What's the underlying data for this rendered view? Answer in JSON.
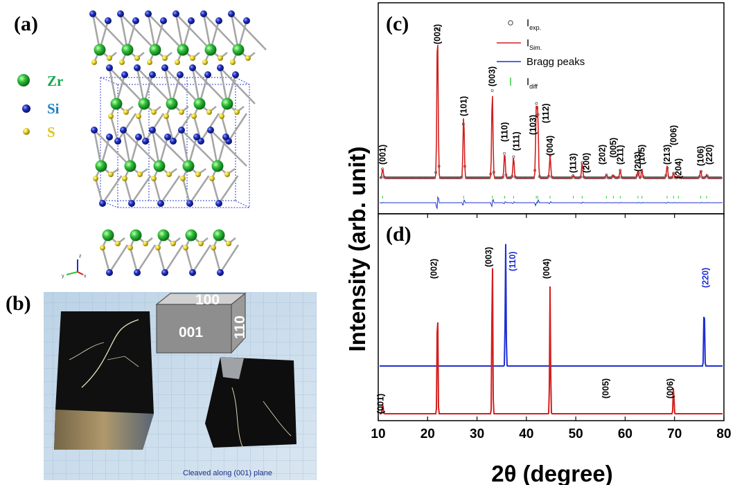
{
  "panels": {
    "a": "(a)",
    "b": "(b)",
    "c": "(c)",
    "d": "(d)"
  },
  "atom_legend": [
    {
      "label": "Zr",
      "color": "#2fbf3a",
      "text_color": "#1aa84f"
    },
    {
      "label": "Si",
      "color": "#1f2fbf",
      "text_color": "#1f7fbf"
    },
    {
      "label": "S",
      "color": "#e8d62a",
      "text_color": "#e0c21c"
    }
  ],
  "crystal_axes": {
    "z": "z",
    "y": "y",
    "x": "x"
  },
  "photo": {
    "cube_faces": {
      "top": "100",
      "front": "001",
      "side": "110"
    },
    "caption": "Cleaved along (001) plane"
  },
  "colors": {
    "experimental": "#444444",
    "simulated": "#d41e1e",
    "bragg": "#1e2fd4",
    "difference": "#2fd43a"
  },
  "chart_data": [
    {
      "panel": "(c)",
      "type": "line",
      "xlim": [
        10,
        80
      ],
      "ylabel": "Intensity (arb. unit)",
      "legend": [
        {
          "symbol": "circle",
          "main": "I",
          "sub": "exp."
        },
        {
          "symbol": "line-red",
          "main": "I",
          "sub": "Sim."
        },
        {
          "symbol": "line-blue",
          "main": "Bragg peaks",
          "sub": ""
        },
        {
          "symbol": "tick-green",
          "main": "I",
          "sub": "diff"
        }
      ],
      "peaks": [
        {
          "hkl": "(001)",
          "x": 10.9,
          "intensity": 0.06
        },
        {
          "hkl": "(002)",
          "x": 22.0,
          "intensity": 1.0
        },
        {
          "hkl": "(101)",
          "x": 27.3,
          "intensity": 0.42
        },
        {
          "hkl": "(003)",
          "x": 33.1,
          "intensity": 0.58
        },
        {
          "hkl": "(110)",
          "x": 35.6,
          "intensity": 0.17
        },
        {
          "hkl": "(111)",
          "x": 37.4,
          "intensity": 0.14
        },
        {
          "hkl": "(103)",
          "x": 42.3,
          "intensity": 0.44
        },
        {
          "hkl": "(112)",
          "x": 42.0,
          "intensity": 0.46
        },
        {
          "hkl": "(004)",
          "x": 44.8,
          "intensity": 0.15
        },
        {
          "hkl": "(113)",
          "x": 49.5,
          "intensity": 0.015
        },
        {
          "hkl": "(200)",
          "x": 51.3,
          "intensity": 0.1
        },
        {
          "hkl": "(202)",
          "x": 56.2,
          "intensity": 0.02
        },
        {
          "hkl": "(005)",
          "x": 57.6,
          "intensity": 0.02
        },
        {
          "hkl": "(211)",
          "x": 59.0,
          "intensity": 0.05
        },
        {
          "hkl": "(203)",
          "x": 62.6,
          "intensity": 0.05
        },
        {
          "hkl": "(105)",
          "x": 63.4,
          "intensity": 0.05
        },
        {
          "hkl": "(213)",
          "x": 68.5,
          "intensity": 0.08
        },
        {
          "hkl": "(006)",
          "x": 69.8,
          "intensity": 0.03
        },
        {
          "hkl": "(204)",
          "x": 70.8,
          "intensity": 0.01
        },
        {
          "hkl": "(106)",
          "x": 75.3,
          "intensity": 0.05
        },
        {
          "hkl": "(220)",
          "x": 76.5,
          "intensity": 0.02
        }
      ]
    },
    {
      "panel": "(d)",
      "type": "line",
      "xlim": [
        10,
        80
      ],
      "xlabel": "2θ (degree)",
      "xticks": [
        10,
        20,
        30,
        40,
        50,
        60,
        70,
        80
      ],
      "series": [
        {
          "color": "#d41e1e",
          "peaks": [
            {
              "hkl": "(001)",
              "x": 10.9,
              "intensity": 0.07
            },
            {
              "hkl": "(002)",
              "x": 22.0,
              "intensity": 0.72
            },
            {
              "hkl": "(003)",
              "x": 33.1,
              "intensity": 1.0
            },
            {
              "hkl": "(004)",
              "x": 44.8,
              "intensity": 0.76
            },
            {
              "hkl": "(005)",
              "x": 56.8,
              "intensity": 0.0
            },
            {
              "hkl": "(006)",
              "x": 69.8,
              "intensity": 0.17
            }
          ]
        },
        {
          "color": "#1e2fd4",
          "peaks": [
            {
              "hkl": "(110)",
              "x": 35.8,
              "intensity": 1.0
            },
            {
              "hkl": "(220)",
              "x": 76.0,
              "intensity": 0.55
            }
          ]
        }
      ]
    }
  ]
}
